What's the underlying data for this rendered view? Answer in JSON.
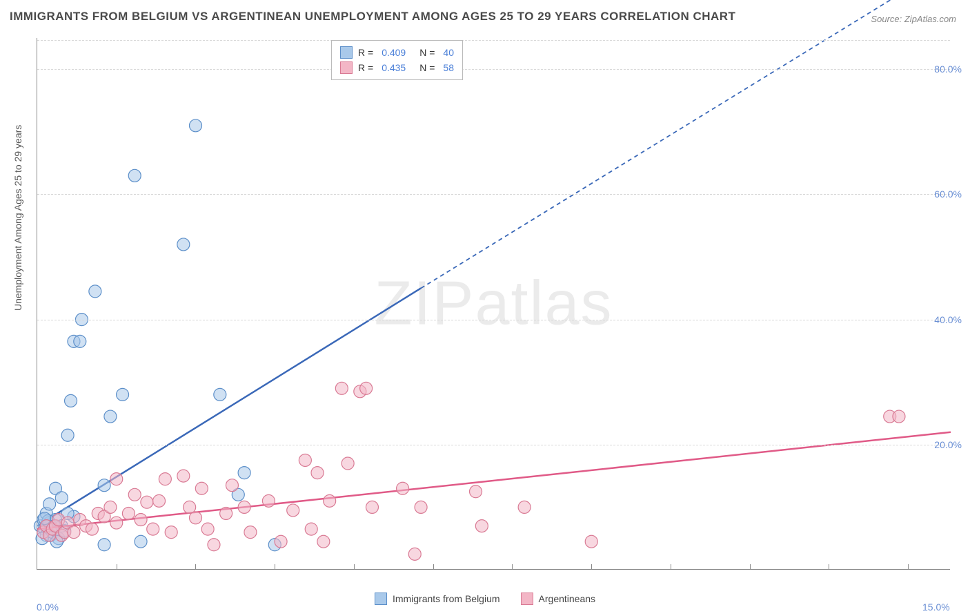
{
  "title": "IMMIGRANTS FROM BELGIUM VS ARGENTINEAN UNEMPLOYMENT AMONG AGES 25 TO 29 YEARS CORRELATION CHART",
  "source": "Source: ZipAtlas.com",
  "watermark": "ZIPatlas",
  "y_axis_label": "Unemployment Among Ages 25 to 29 years",
  "xlim": [
    0,
    15
  ],
  "ylim": [
    0,
    85
  ],
  "x_ticks": [
    0,
    15
  ],
  "x_ticks_minor": [
    1.3,
    2.6,
    3.9,
    5.2,
    6.5,
    7.8,
    9.1,
    10.4,
    11.7,
    13.0,
    14.3
  ],
  "y_ticks": [
    20,
    40,
    60,
    80
  ],
  "axis_label_color": "#6a8fd4",
  "grid_color": "#d8d8d8",
  "series": [
    {
      "name": "Immigrants from Belgium",
      "fill": "#a9c9ea",
      "stroke": "#5c8fc9",
      "fill_opacity": 0.55,
      "line_color": "#3a68b8",
      "r_value": "0.409",
      "n_value": "40",
      "marker_radius": 9,
      "regression": {
        "x1": 0,
        "y1": 7,
        "x2": 6.3,
        "y2": 45,
        "dash_continue": true,
        "x3": 15,
        "y3": 97
      },
      "points": [
        [
          0.05,
          7
        ],
        [
          0.1,
          8
        ],
        [
          0.12,
          6.5
        ],
        [
          0.15,
          5.5
        ],
        [
          0.15,
          9
        ],
        [
          0.2,
          7.5
        ],
        [
          0.2,
          10.5
        ],
        [
          0.22,
          5.5
        ],
        [
          0.25,
          6
        ],
        [
          0.3,
          8
        ],
        [
          0.3,
          13
        ],
        [
          0.35,
          5
        ],
        [
          0.4,
          7
        ],
        [
          0.4,
          11.5
        ],
        [
          0.5,
          21.5
        ],
        [
          0.55,
          27
        ],
        [
          0.6,
          36.5
        ],
        [
          0.7,
          36.5
        ],
        [
          0.73,
          40
        ],
        [
          0.95,
          44.5
        ],
        [
          1.1,
          4
        ],
        [
          1.1,
          13.5
        ],
        [
          1.2,
          24.5
        ],
        [
          1.4,
          28
        ],
        [
          1.6,
          63
        ],
        [
          1.7,
          4.5
        ],
        [
          2.4,
          52
        ],
        [
          2.6,
          71
        ],
        [
          3.0,
          28
        ],
        [
          3.3,
          12
        ],
        [
          3.4,
          15.5
        ],
        [
          0.18,
          7.8
        ],
        [
          0.45,
          6.2
        ],
        [
          0.08,
          5
        ],
        [
          0.32,
          4.5
        ],
        [
          0.6,
          8.5
        ],
        [
          0.12,
          8.2
        ],
        [
          0.28,
          7
        ],
        [
          0.5,
          9
        ],
        [
          3.9,
          4
        ]
      ]
    },
    {
      "name": "Argentineans",
      "fill": "#f3b6c6",
      "stroke": "#d97a94",
      "fill_opacity": 0.55,
      "line_color": "#e05a87",
      "r_value": "0.435",
      "n_value": "58",
      "marker_radius": 9,
      "regression": {
        "x1": 0,
        "y1": 6.5,
        "x2": 15,
        "y2": 22,
        "dash_continue": false
      },
      "points": [
        [
          0.1,
          6
        ],
        [
          0.15,
          7
        ],
        [
          0.2,
          5.5
        ],
        [
          0.25,
          6.5
        ],
        [
          0.3,
          7
        ],
        [
          0.35,
          8
        ],
        [
          0.4,
          5.5
        ],
        [
          0.45,
          6
        ],
        [
          0.5,
          7.5
        ],
        [
          0.6,
          6
        ],
        [
          0.7,
          8
        ],
        [
          0.8,
          7
        ],
        [
          0.9,
          6.5
        ],
        [
          1.0,
          9
        ],
        [
          1.1,
          8.5
        ],
        [
          1.2,
          10
        ],
        [
          1.3,
          7.5
        ],
        [
          1.3,
          14.5
        ],
        [
          1.5,
          9
        ],
        [
          1.6,
          12
        ],
        [
          1.7,
          8
        ],
        [
          1.9,
          6.5
        ],
        [
          2.0,
          11
        ],
        [
          2.1,
          14.5
        ],
        [
          2.2,
          6
        ],
        [
          2.4,
          15
        ],
        [
          2.5,
          10
        ],
        [
          2.6,
          8.3
        ],
        [
          2.7,
          13
        ],
        [
          2.8,
          6.5
        ],
        [
          2.9,
          4
        ],
        [
          3.1,
          9
        ],
        [
          3.2,
          13.5
        ],
        [
          3.4,
          10
        ],
        [
          3.5,
          6
        ],
        [
          3.8,
          11
        ],
        [
          4.0,
          4.5
        ],
        [
          4.2,
          9.5
        ],
        [
          4.4,
          17.5
        ],
        [
          4.5,
          6.5
        ],
        [
          4.7,
          4.5
        ],
        [
          4.8,
          11
        ],
        [
          5.0,
          29
        ],
        [
          5.1,
          17
        ],
        [
          5.3,
          28.5
        ],
        [
          5.4,
          29
        ],
        [
          5.5,
          10
        ],
        [
          6.0,
          13
        ],
        [
          6.2,
          2.5
        ],
        [
          6.3,
          10
        ],
        [
          7.2,
          12.5
        ],
        [
          7.3,
          7
        ],
        [
          8.0,
          10
        ],
        [
          9.1,
          4.5
        ],
        [
          14.0,
          24.5
        ],
        [
          14.15,
          24.5
        ],
        [
          4.6,
          15.5
        ],
        [
          1.8,
          10.8
        ]
      ]
    }
  ],
  "bottom_legend": [
    {
      "label": "Immigrants from Belgium",
      "fill": "#a9c9ea",
      "stroke": "#5c8fc9"
    },
    {
      "label": "Argentineans",
      "fill": "#f3b6c6",
      "stroke": "#d97a94"
    }
  ]
}
